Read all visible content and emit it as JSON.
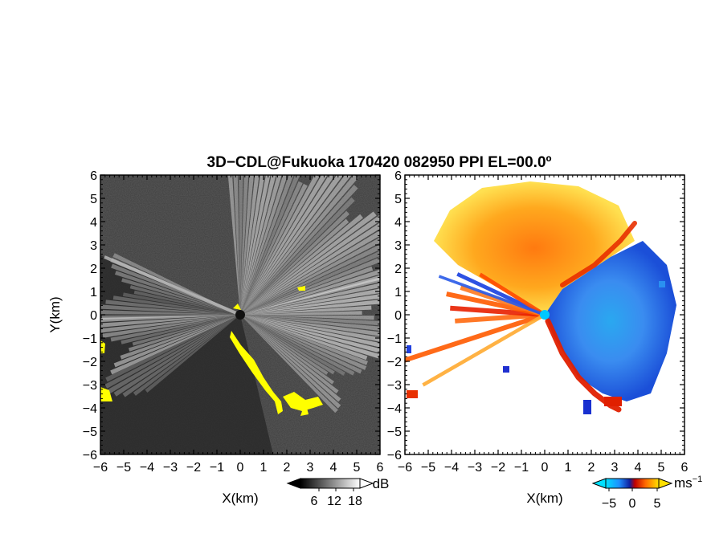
{
  "title": "3D−CDL@Fukuoka 170420 082950 PPI EL=00.0º",
  "colors": {
    "zero_vel": "#00c8ff",
    "yellow_flag": "#ffff00"
  },
  "chart_data": [
    {
      "type": "heatmap",
      "panel": "left",
      "quantity": "SNR",
      "xlabel": "X(km)",
      "ylabel": "Y(km)",
      "xlim": [
        -6,
        6
      ],
      "ylim": [
        -6,
        6
      ],
      "x_ticks": [
        "−6",
        "−5",
        "−4",
        "−3",
        "−2",
        "−1",
        "0",
        "1",
        "2",
        "3",
        "4",
        "5",
        "6"
      ],
      "y_ticks": [
        "6",
        "5",
        "4",
        "3",
        "2",
        "1",
        "0",
        "−1",
        "−2",
        "−3",
        "−4",
        "−5",
        "−6"
      ],
      "colorbar": {
        "unit": "dB",
        "ticks": [
          "6",
          "12",
          "18"
        ],
        "colormap": "grayscale (black to white)",
        "extend": "both"
      },
      "features": [
        "grey clutter background",
        "bright radial beams east and west",
        "yellow flagged echo southeast of center"
      ]
    },
    {
      "type": "heatmap",
      "panel": "right",
      "quantity": "Doppler velocity",
      "xlabel": "X(km)",
      "ylabel": "",
      "xlim": [
        -6,
        6
      ],
      "ylim": [
        -6,
        6
      ],
      "x_ticks": [
        "−6",
        "−5",
        "−4",
        "−3",
        "−2",
        "−1",
        "0",
        "1",
        "2",
        "3",
        "4",
        "5",
        "6"
      ],
      "y_ticks": [
        "6",
        "5",
        "4",
        "3",
        "2",
        "1",
        "0",
        "−1",
        "−2",
        "−3",
        "−4",
        "−5",
        "−6"
      ],
      "colorbar": {
        "unit": "ms",
        "unit_exponent": "−1",
        "ticks": [
          "−5",
          "0",
          "5"
        ],
        "colormap": "cyan-blue-navy to red-orange-yellow",
        "extend": "both"
      },
      "features": [
        "yellow/orange receding winds north-west sector",
        "blue approaching winds east sector",
        "red shear band along boundary"
      ]
    }
  ]
}
